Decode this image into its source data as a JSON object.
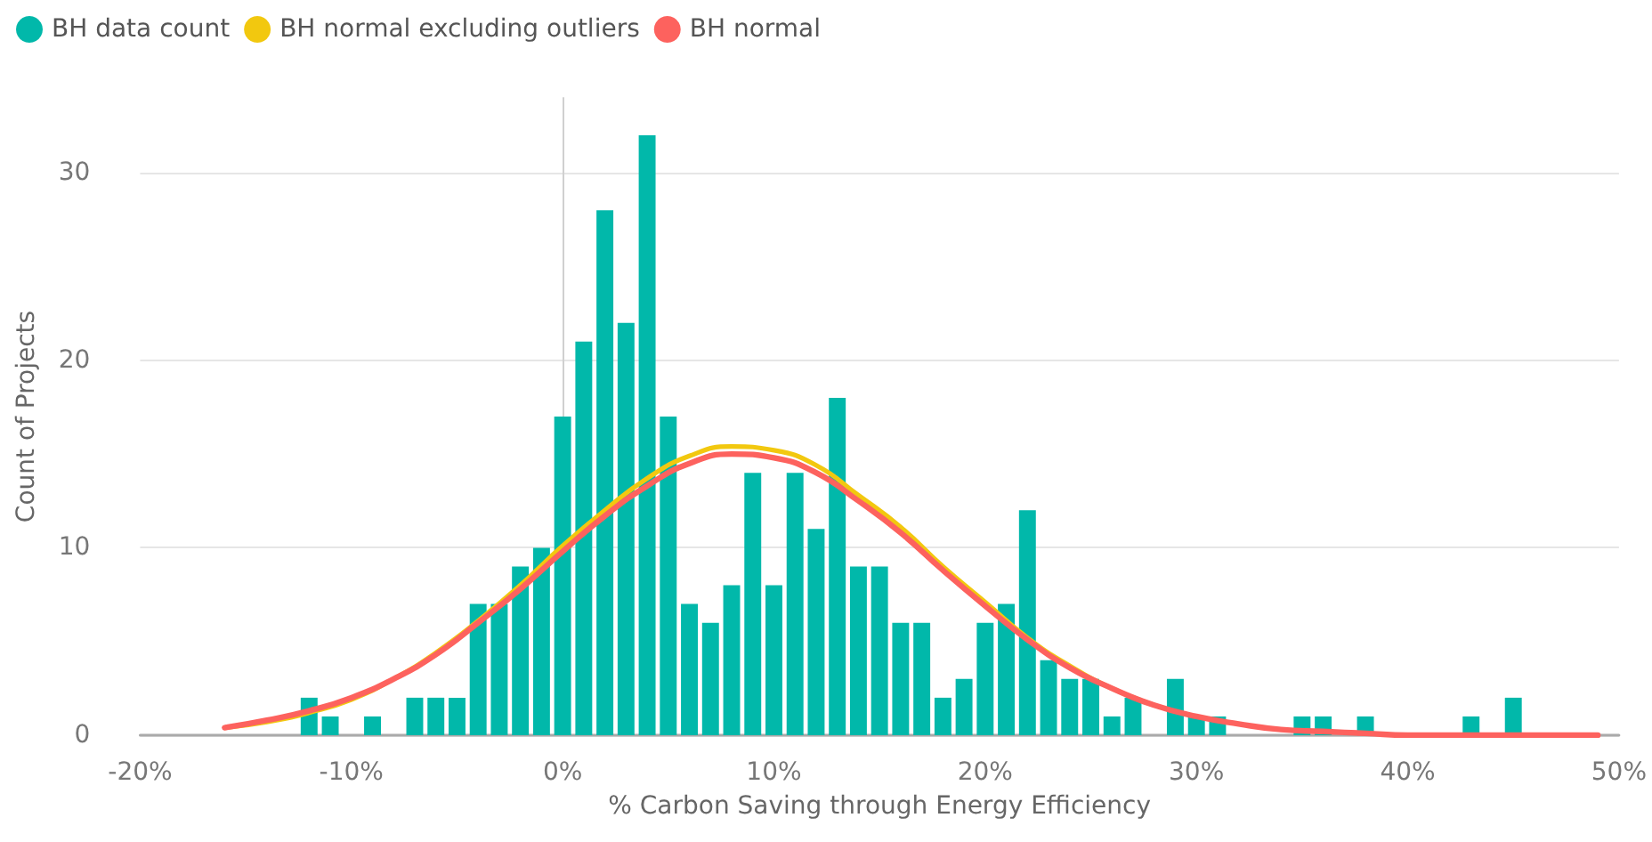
{
  "chart_data": {
    "type": "histogram",
    "xlabel": "% Carbon Saving through Energy Efficiency",
    "ylabel": "Count of Projects",
    "bins": [
      -12.5,
      -11.5,
      -10.5,
      -9.5,
      -8.5,
      -7.5,
      -6.5,
      -5.5,
      -4.5,
      -3.5,
      -2.5,
      -1.5,
      -0.5,
      0.5,
      1.5,
      2.5,
      3.5,
      4.5,
      5.5,
      6.5,
      7.5,
      8.5,
      9.5,
      10.5,
      11.5,
      12.5,
      13.5,
      14.5,
      15.5,
      16.5,
      17.5,
      18.5,
      19.5,
      20.5,
      21.5,
      22.5,
      23.5,
      24.5,
      25.5,
      26.5,
      27.5,
      28.5,
      29.5,
      30.5,
      31.5,
      32.5,
      33.5,
      34.5,
      35.5,
      36.5,
      37.5,
      38.5,
      39.5,
      40.5,
      41.5,
      42.5,
      43.5,
      44.5,
      45.5
    ],
    "series": [
      {
        "name": "BH data count",
        "color": "#01b8aa",
        "values": [
          2,
          1,
          0,
          1,
          0,
          2,
          2,
          2,
          7,
          7,
          9,
          10,
          17,
          21,
          28,
          22,
          32,
          17,
          7,
          6,
          8,
          14,
          8,
          14,
          11,
          18,
          9,
          9,
          6,
          6,
          2,
          3,
          6,
          7,
          12,
          4,
          3,
          3,
          1,
          2,
          0,
          3,
          1,
          1,
          0,
          0,
          0,
          1,
          1,
          0,
          1,
          0,
          0,
          0,
          0,
          1,
          0,
          2
        ]
      },
      {
        "name": "BH normal excluding outliers",
        "type": "line",
        "color": "#f2c80f",
        "x": [
          -16,
          -14,
          -12,
          -10,
          -8,
          -6,
          -4,
          -2,
          0,
          2,
          4,
          6,
          8,
          10,
          12,
          14,
          16,
          18,
          20,
          22,
          24,
          26,
          28
        ],
        "values": [
          0.4,
          0.7,
          1.2,
          1.9,
          3.0,
          4.4,
          6.1,
          8.0,
          10.1,
          12.0,
          13.7,
          14.9,
          15.4,
          15.2,
          14.4,
          12.8,
          11.1,
          9.0,
          7.1,
          5.2,
          3.7,
          2.5,
          1.6
        ]
      },
      {
        "name": "BH normal",
        "type": "line",
        "color": "#fd625e",
        "x": [
          -16,
          -14,
          -12,
          -10,
          -8,
          -6,
          -4,
          -2,
          0,
          2,
          4,
          6,
          8,
          10,
          12,
          14,
          16,
          18,
          20,
          22,
          24,
          26,
          28,
          30,
          32,
          34,
          36,
          38,
          40,
          42,
          44,
          46,
          48,
          49
        ],
        "values": [
          0.4,
          0.8,
          1.3,
          2.0,
          3.0,
          4.3,
          6.0,
          7.8,
          9.8,
          11.7,
          13.3,
          14.5,
          15.0,
          14.8,
          14.0,
          12.5,
          10.8,
          8.8,
          6.9,
          5.1,
          3.6,
          2.5,
          1.6,
          1.0,
          0.6,
          0.3,
          0.2,
          0.1,
          0,
          0,
          0,
          0,
          0,
          0
        ]
      }
    ],
    "xlim": [
      -20,
      50
    ],
    "xticks": [
      {
        "value": -20,
        "label": "-20%"
      },
      {
        "value": -10,
        "label": "-10%"
      },
      {
        "value": 0,
        "label": "0%"
      },
      {
        "value": 10,
        "label": "10%"
      },
      {
        "value": 20,
        "label": "20%"
      },
      {
        "value": 30,
        "label": "30%"
      },
      {
        "value": 40,
        "label": "40%"
      },
      {
        "value": 50,
        "label": "50%"
      }
    ],
    "ylim": [
      0,
      34
    ],
    "yticks": [
      0,
      10,
      20,
      30
    ],
    "grid": "y",
    "legend": "top left",
    "marker": "none"
  }
}
